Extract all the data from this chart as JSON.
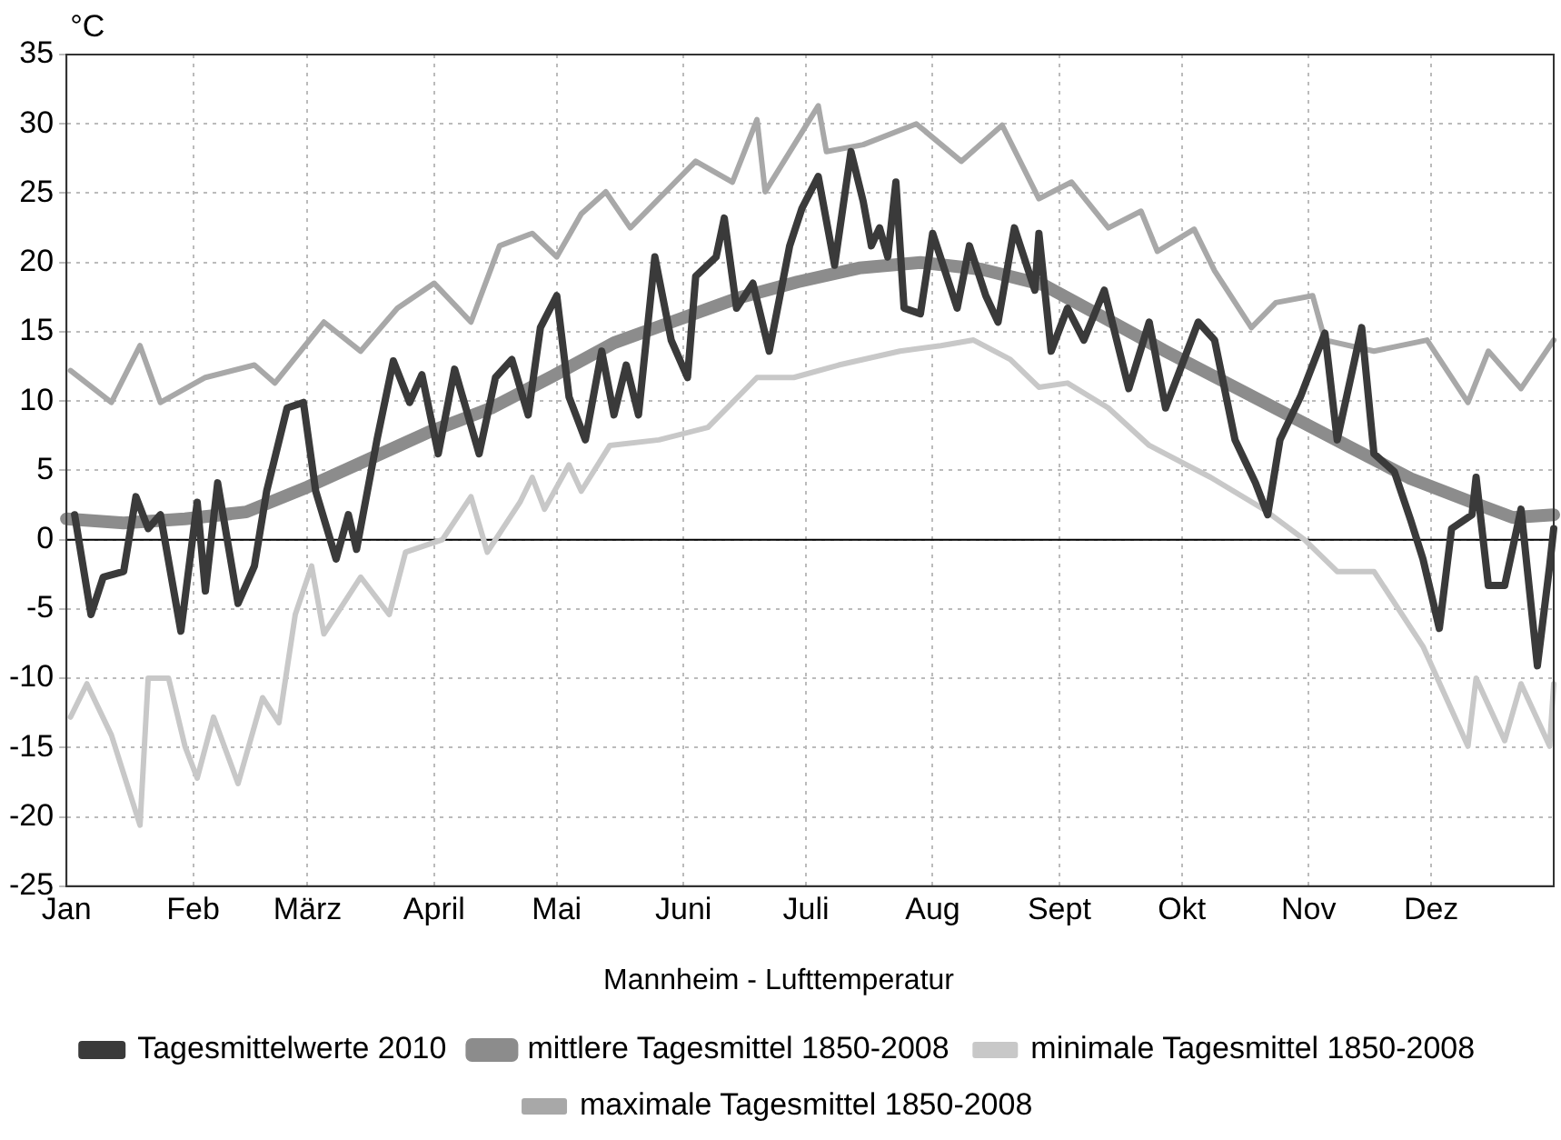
{
  "chart_data": {
    "type": "line",
    "ylabel": "°C",
    "legend_title": "Mannheim - Lufttemperatur",
    "legend": "bottom",
    "grid": true,
    "marker": "none",
    "line_style": "solid",
    "xlim": [
      "--01-01",
      "--12-31"
    ],
    "xticks": [
      {
        "value": "--01-01",
        "label": "Jan"
      },
      {
        "value": "--02-01",
        "label": "Feb"
      },
      {
        "value": "--03-01",
        "label": "März"
      },
      {
        "value": "--04-01",
        "label": "April"
      },
      {
        "value": "--05-01",
        "label": "Mai"
      },
      {
        "value": "--06-01",
        "label": "Juni"
      },
      {
        "value": "--07-01",
        "label": "Juli"
      },
      {
        "value": "--08-01",
        "label": "Aug"
      },
      {
        "value": "--09-01",
        "label": "Sept"
      },
      {
        "value": "--10-01",
        "label": "Okt"
      },
      {
        "value": "--11-01",
        "label": "Nov"
      },
      {
        "value": "--12-01",
        "label": "Dez"
      }
    ],
    "ylim": [
      -25,
      35
    ],
    "yticks": [
      -25,
      -20,
      -15,
      -10,
      -5,
      0,
      5,
      10,
      15,
      20,
      25,
      30,
      35
    ],
    "ref_lines": [
      {
        "axis": "y",
        "value": 0,
        "color": "#000000"
      }
    ],
    "series": [
      {
        "name": "Tagesmittelwerte 2010",
        "color": "#3a3a3a",
        "x": [
          "--01-03",
          "--01-07",
          "--01-10",
          "--01-15",
          "--01-18",
          "--01-21",
          "--01-24",
          "--01-29",
          "--02-02",
          "--02-04",
          "--02-07",
          "--02-12",
          "--02-16",
          "--02-19",
          "--02-24",
          "--02-28",
          "--03-03",
          "--03-08",
          "--03-11",
          "--03-13",
          "--03-18",
          "--03-22",
          "--03-26",
          "--03-29",
          "--04-02",
          "--04-06",
          "--04-12",
          "--04-16",
          "--04-20",
          "--04-24",
          "--04-27",
          "--05-01",
          "--05-04",
          "--05-08",
          "--05-12",
          "--05-15",
          "--05-18",
          "--05-21",
          "--05-25",
          "--05-29",
          "--06-02",
          "--06-04",
          "--06-09",
          "--06-11",
          "--06-14",
          "--06-18",
          "--06-22",
          "--06-27",
          "--06-30",
          "--07-04",
          "--07-08",
          "--07-12",
          "--07-15",
          "--07-17",
          "--07-19",
          "--07-21",
          "--07-23",
          "--07-25",
          "--07-29",
          "--08-01",
          "--08-07",
          "--08-10",
          "--08-14",
          "--08-17",
          "--08-21",
          "--08-26",
          "--08-27",
          "--08-30",
          "--09-03",
          "--09-07",
          "--09-12",
          "--09-18",
          "--09-23",
          "--09-27",
          "--10-01",
          "--10-05",
          "--10-09",
          "--10-14",
          "--10-19",
          "--10-22",
          "--10-25",
          "--10-30",
          "--11-05",
          "--11-08",
          "--11-14",
          "--11-17",
          "--11-22",
          "--11-26",
          "--11-29",
          "--12-03",
          "--12-06",
          "--12-11",
          "--12-12",
          "--12-15",
          "--12-19",
          "--12-23",
          "--12-27",
          "--12-30",
          "--12-31"
        ],
        "values": [
          1.8,
          -5.4,
          -2.7,
          -2.3,
          3.1,
          0.8,
          1.8,
          -6.6,
          2.7,
          -3.7,
          4.1,
          -4.6,
          -1.9,
          3.5,
          9.5,
          9.9,
          3.5,
          -1.4,
          1.8,
          -0.7,
          7.2,
          12.9,
          9.9,
          11.9,
          6.2,
          12.3,
          6.2,
          11.7,
          13.0,
          9.0,
          15.3,
          17.6,
          10.3,
          7.2,
          13.6,
          9.0,
          12.6,
          9.0,
          20.4,
          14.4,
          11.7,
          19.0,
          20.4,
          23.2,
          16.7,
          18.5,
          13.6,
          21.2,
          23.9,
          26.2,
          19.8,
          28.0,
          24.4,
          21.2,
          22.5,
          20.4,
          25.8,
          16.7,
          16.3,
          22.1,
          16.7,
          21.2,
          17.6,
          15.7,
          22.5,
          18.0,
          22.1,
          13.6,
          16.7,
          14.4,
          18.0,
          10.9,
          15.7,
          9.5,
          12.6,
          15.7,
          14.4,
          7.2,
          4.1,
          1.8,
          7.2,
          10.3,
          14.9,
          7.2,
          15.3,
          6.2,
          4.9,
          1.4,
          -1.4,
          -6.4,
          0.8,
          1.8,
          4.5,
          -3.3,
          -3.3,
          2.2,
          -9.1,
          -1.9,
          0.8
        ]
      },
      {
        "name": "mittlere Tagesmittel 1850-2008",
        "color": "#8c8c8c",
        "x": [
          "--01-01",
          "--01-15",
          "--01-30",
          "--02-14",
          "--03-01",
          "--03-16",
          "--03-31",
          "--04-15",
          "--04-30",
          "--05-15",
          "--05-30",
          "--06-14",
          "--06-29",
          "--07-14",
          "--07-29",
          "--08-13",
          "--08-28",
          "--09-12",
          "--09-27",
          "--10-12",
          "--10-27",
          "--11-11",
          "--11-26",
          "--12-11",
          "--12-21",
          "--12-31"
        ],
        "values": [
          1.5,
          1.2,
          1.5,
          2.0,
          3.8,
          5.8,
          7.8,
          9.5,
          11.8,
          14.2,
          15.8,
          17.4,
          18.6,
          19.6,
          20.0,
          19.5,
          18.4,
          16.0,
          13.6,
          11.3,
          9.0,
          6.7,
          4.4,
          2.7,
          1.6,
          1.8
        ]
      },
      {
        "name": "minimale Tagesmittel 1850-2008",
        "color": "#c8c8c8",
        "x": [
          "--01-02",
          "--01-06",
          "--01-12",
          "--01-19",
          "--01-21",
          "--01-26",
          "--01-30",
          "--02-02",
          "--02-06",
          "--02-12",
          "--02-18",
          "--02-22",
          "--02-26",
          "--03-02",
          "--03-05",
          "--03-14",
          "--03-21",
          "--03-25",
          "--04-03",
          "--04-10",
          "--04-14",
          "--04-22",
          "--04-25",
          "--04-28",
          "--05-04",
          "--05-07",
          "--05-14",
          "--05-26",
          "--06-07",
          "--06-19",
          "--06-28",
          "--07-09",
          "--07-24",
          "--08-03",
          "--08-11",
          "--08-20",
          "--08-27",
          "--09-03",
          "--09-13",
          "--09-23",
          "--10-08",
          "--10-21",
          "--10-31",
          "--11-08",
          "--11-17",
          "--11-29",
          "--12-10",
          "--12-12",
          "--12-19",
          "--12-23",
          "--12-30",
          "--12-31"
        ],
        "values": [
          -12.8,
          -10.4,
          -14.1,
          -20.6,
          -10.0,
          -10.0,
          -14.9,
          -17.2,
          -12.8,
          -17.6,
          -11.4,
          -13.2,
          -5.4,
          -1.9,
          -6.8,
          -2.7,
          -5.4,
          -0.9,
          0,
          3.1,
          -0.9,
          2.7,
          4.5,
          2.2,
          5.4,
          3.5,
          6.8,
          7.2,
          8.1,
          11.7,
          11.7,
          12.6,
          13.6,
          14.0,
          14.4,
          13.0,
          11.0,
          11.3,
          9.5,
          6.8,
          4.5,
          2.2,
          0,
          -2.3,
          -2.3,
          -7.7,
          -14.9,
          -10.0,
          -14.5,
          -10.4,
          -14.9,
          -10.4
        ]
      },
      {
        "name": "maximale Tagesmittel 1850-2008",
        "color": "#a8a8a8",
        "x": [
          "--01-02",
          "--01-12",
          "--01-19",
          "--01-24",
          "--02-04",
          "--02-16",
          "--02-21",
          "--03-05",
          "--03-14",
          "--03-23",
          "--04-01",
          "--04-10",
          "--04-17",
          "--04-25",
          "--05-01",
          "--05-07",
          "--05-13",
          "--05-19",
          "--06-04",
          "--06-13",
          "--06-19",
          "--06-21",
          "--07-04",
          "--07-06",
          "--07-15",
          "--07-28",
          "--08-08",
          "--08-18",
          "--08-27",
          "--09-04",
          "--09-13",
          "--09-21",
          "--09-25",
          "--10-04",
          "--10-09",
          "--10-18",
          "--10-24",
          "--11-02",
          "--11-05",
          "--11-17",
          "--11-30",
          "--12-10",
          "--12-15",
          "--12-23",
          "--12-31"
        ],
        "values": [
          12.2,
          9.9,
          14.0,
          9.9,
          11.7,
          12.6,
          11.3,
          15.7,
          13.6,
          16.7,
          18.5,
          15.7,
          21.2,
          22.1,
          20.4,
          23.5,
          25.1,
          22.5,
          27.3,
          25.8,
          30.3,
          25.1,
          31.3,
          28.0,
          28.5,
          30.0,
          27.3,
          29.9,
          24.6,
          25.8,
          22.5,
          23.7,
          20.8,
          22.4,
          19.4,
          15.3,
          17.1,
          17.6,
          14.4,
          13.6,
          14.4,
          9.9,
          13.6,
          10.9,
          14.4
        ]
      }
    ]
  }
}
